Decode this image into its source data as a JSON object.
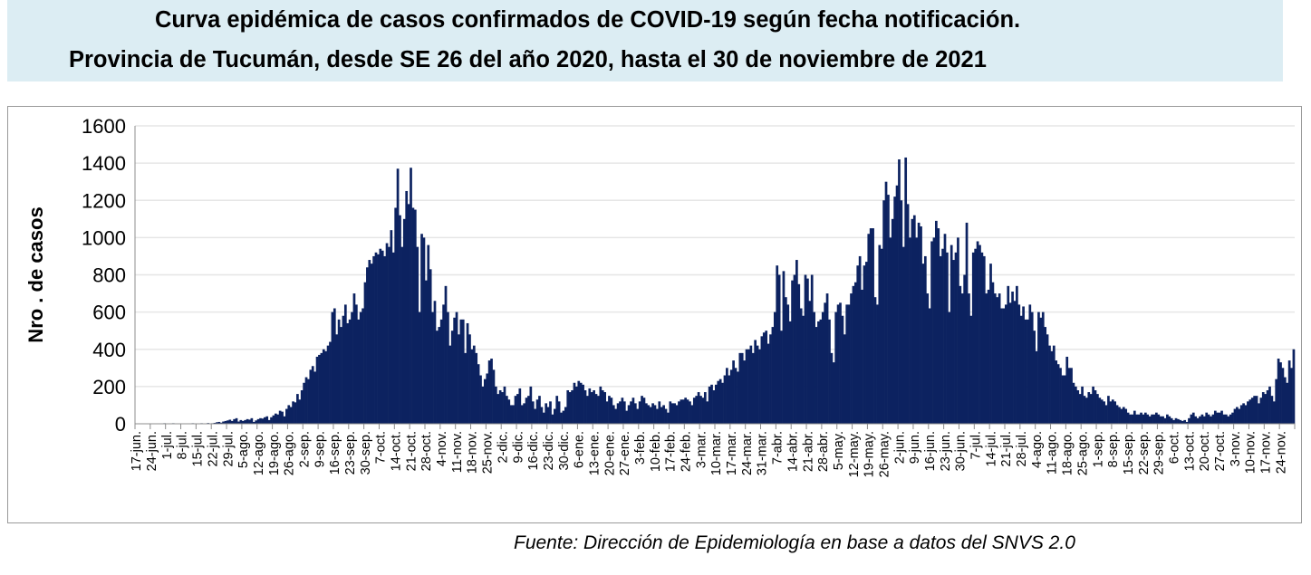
{
  "title_line1": "Curva epidémica de casos confirmados de COVID-19 según fecha notificación.",
  "title_line2": "Provincia de Tucumán, desde SE 26 del año 2020, hasta el 30 de noviembre de 2021",
  "source": "Fuente: Dirección de Epidemiología en base a datos del SNVS 2.0",
  "colors": {
    "bars": "#0c2260",
    "title_background": "#dcedf3",
    "grid": "#e6e6e6"
  },
  "chart_data": {
    "type": "bar",
    "title": "",
    "xlabel": "",
    "ylabel": "Nro . de casos",
    "ylim": [
      0,
      1600
    ],
    "yticks": [
      0,
      200,
      400,
      600,
      800,
      1000,
      1200,
      1400,
      1600
    ],
    "grid": true,
    "x_start": "17-jun-2020",
    "x_end": "30-nov-2021",
    "x_interval": "daily",
    "xtick_labels": [
      "17-jun.",
      "24-jun.",
      "1-jul.",
      "8-jul.",
      "15-jul.",
      "22-jul.",
      "29-jul.",
      "5-ago.",
      "12-ago.",
      "19-ago.",
      "26-ago.",
      "2-sep.",
      "9-sep.",
      "16-sep.",
      "23-sep.",
      "30-sep.",
      "7-oct.",
      "14-oct.",
      "21-oct.",
      "28-oct.",
      "4-nov.",
      "11-nov.",
      "18-nov.",
      "25-nov.",
      "2-dic.",
      "9-dic.",
      "16-dic.",
      "23-dic.",
      "30-dic.",
      "6-ene.",
      "13-ene.",
      "20-ene.",
      "27-ene.",
      "3-feb.",
      "10-feb.",
      "17-feb.",
      "24-feb.",
      "3-mar.",
      "10-mar.",
      "17-mar.",
      "24-mar.",
      "31-mar.",
      "7-abr.",
      "14-abr.",
      "21-abr.",
      "28-abr.",
      "5-may.",
      "12-may.",
      "19-may.",
      "26-may.",
      "2-jun.",
      "9-jun.",
      "16-jun.",
      "23-jun.",
      "30-jun.",
      "7-jul.",
      "14-jul.",
      "21-jul.",
      "28-jul.",
      "4-ago.",
      "11-ago.",
      "18-ago.",
      "25-ago.",
      "1-sep.",
      "8-sep.",
      "15-sep.",
      "22-sep.",
      "29-sep.",
      "6-oct.",
      "13-oct.",
      "20-oct.",
      "27-oct.",
      "3-nov.",
      "10-nov.",
      "17-nov.",
      "24-nov."
    ],
    "values": [
      0,
      0,
      1,
      0,
      0,
      2,
      1,
      1,
      0,
      2,
      1,
      0,
      0,
      3,
      2,
      1,
      0,
      3,
      1,
      0,
      2,
      1,
      0,
      2,
      0,
      1,
      3,
      1,
      2,
      1,
      3,
      2,
      0,
      4,
      2,
      3,
      5,
      8,
      10,
      6,
      12,
      15,
      18,
      22,
      15,
      25,
      30,
      12,
      20,
      15,
      20,
      25,
      22,
      30,
      10,
      18,
      25,
      30,
      28,
      35,
      40,
      20,
      35,
      45,
      55,
      50,
      70,
      65,
      40,
      80,
      100,
      90,
      120,
      115,
      160,
      130,
      180,
      220,
      250,
      240,
      290,
      310,
      280,
      360,
      370,
      380,
      400,
      390,
      420,
      440,
      600,
      620,
      480,
      560,
      520,
      580,
      640,
      540,
      560,
      600,
      700,
      640,
      560,
      600,
      620,
      760,
      840,
      880,
      860,
      900,
      920,
      910,
      940,
      930,
      900,
      970,
      950,
      1040,
      920,
      1160,
      1370,
      1120,
      950,
      1100,
      1250,
      1180,
      1375,
      1160,
      1150,
      950,
      600,
      1020,
      1000,
      770,
      960,
      830,
      600,
      660,
      500,
      520,
      560,
      640,
      740,
      600,
      420,
      500,
      570,
      600,
      480,
      560,
      560,
      380,
      540,
      480,
      400,
      420,
      380,
      320,
      260,
      200,
      240,
      270,
      340,
      350,
      290,
      200,
      160,
      180,
      170,
      200,
      150,
      130,
      100,
      100,
      150,
      160,
      190,
      100,
      110,
      140,
      150,
      200,
      120,
      80,
      130,
      150,
      90,
      60,
      110,
      90,
      120,
      50,
      80,
      150,
      120,
      60,
      70,
      90,
      180,
      170,
      180,
      220,
      200,
      230,
      220,
      210,
      180,
      150,
      190,
      170,
      180,
      160,
      150,
      200,
      180,
      170,
      120,
      150,
      140,
      100,
      80,
      110,
      120,
      140,
      120,
      70,
      100,
      120,
      140,
      110,
      80,
      120,
      150,
      140,
      110,
      100,
      90,
      110,
      100,
      80,
      120,
      90,
      100,
      80,
      60,
      120,
      110,
      110,
      100,
      120,
      130,
      130,
      140,
      130,
      120,
      100,
      140,
      150,
      170,
      150,
      140,
      170,
      120,
      200,
      210,
      180,
      210,
      230,
      240,
      220,
      260,
      300,
      260,
      290,
      340,
      300,
      280,
      380,
      380,
      340,
      400,
      400,
      420,
      380,
      450,
      420,
      400,
      470,
      490,
      500,
      430,
      480,
      520,
      600,
      850,
      800,
      500,
      820,
      680,
      640,
      550,
      770,
      800,
      880,
      750,
      620,
      580,
      800,
      780,
      660,
      800,
      600,
      520,
      550,
      560,
      600,
      650,
      700,
      560,
      380,
      330,
      600,
      640,
      650,
      580,
      480,
      640,
      640,
      700,
      740,
      760,
      850,
      900,
      720,
      850,
      870,
      1020,
      1050,
      1050,
      680,
      640,
      960,
      940,
      1200,
      1300,
      1230,
      1000,
      1100,
      1220,
      1280,
      1420,
      1200,
      950,
      1430,
      1180,
      1000,
      1100,
      1120,
      1000,
      1080,
      1060,
      860,
      900,
      700,
      620,
      980,
      1000,
      1090,
      1050,
      900,
      940,
      1020,
      920,
      600,
      960,
      880,
      920,
      1000,
      740,
      700,
      800,
      1080,
      700,
      580,
      920,
      940,
      980,
      960,
      920,
      900,
      700,
      720,
      860,
      760,
      700,
      680,
      700,
      620,
      620,
      640,
      740,
      650,
      710,
      660,
      740,
      640,
      580,
      630,
      560,
      560,
      640,
      600,
      500,
      390,
      600,
      570,
      600,
      520,
      480,
      420,
      390,
      420,
      340,
      320,
      300,
      260,
      260,
      360,
      300,
      300,
      220,
      200,
      180,
      160,
      200,
      150,
      140,
      170,
      160,
      200,
      180,
      160,
      140,
      130,
      120,
      100,
      150,
      120,
      130,
      120,
      100,
      90,
      80,
      90,
      80,
      60,
      50,
      50,
      70,
      50,
      50,
      60,
      50,
      60,
      50,
      40,
      50,
      50,
      60,
      50,
      40,
      40,
      30,
      50,
      40,
      30,
      20,
      30,
      25,
      20,
      15,
      20,
      10,
      30,
      50,
      60,
      40,
      30,
      40,
      50,
      40,
      60,
      50,
      40,
      50,
      70,
      60,
      60,
      70,
      50,
      50,
      40,
      50,
      60,
      80,
      90,
      80,
      100,
      110,
      100,
      120,
      130,
      140,
      150,
      150,
      110,
      140,
      170,
      160,
      180,
      200,
      150,
      120,
      240,
      350,
      330,
      300,
      250,
      220,
      340,
      300,
      400
    ]
  }
}
